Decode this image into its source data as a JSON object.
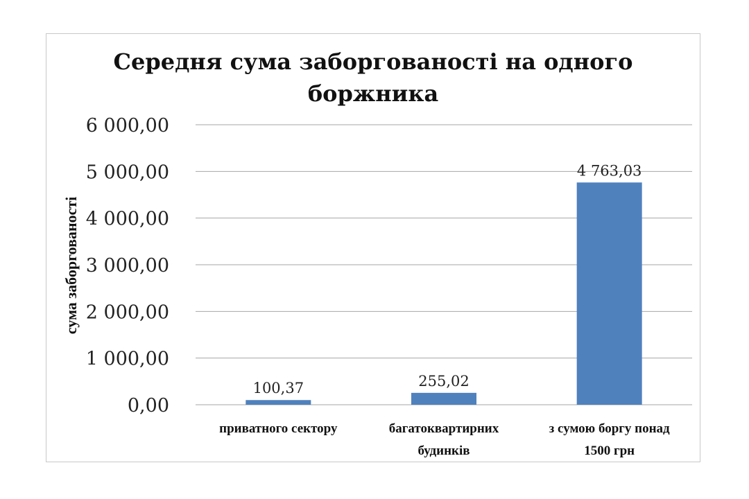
{
  "chart_data": {
    "type": "bar",
    "title_lines": [
      "Середня сума заборгованості на одного",
      "боржника"
    ],
    "ylabel": "сума заборгованості",
    "xlabel": "",
    "ylim": [
      0,
      6000
    ],
    "yticks": [
      0,
      1000,
      2000,
      3000,
      4000,
      5000,
      6000
    ],
    "ytick_labels": [
      "0,00",
      "1 000,00",
      "2 000,00",
      "3 000,00",
      "4 000,00",
      "5 000,00",
      "6 000,00"
    ],
    "grid": true,
    "categories": [
      [
        "приватного сектору"
      ],
      [
        "багатоквартирних",
        "будинків"
      ],
      [
        "з сумою боргу понад",
        "1500 грн"
      ]
    ],
    "values": [
      100.37,
      255.02,
      4763.03
    ],
    "value_labels": [
      "100,37",
      "255,02",
      "4 763,03"
    ],
    "bar_color": "#4f81bd",
    "grid_color": "#a6a6a6"
  }
}
